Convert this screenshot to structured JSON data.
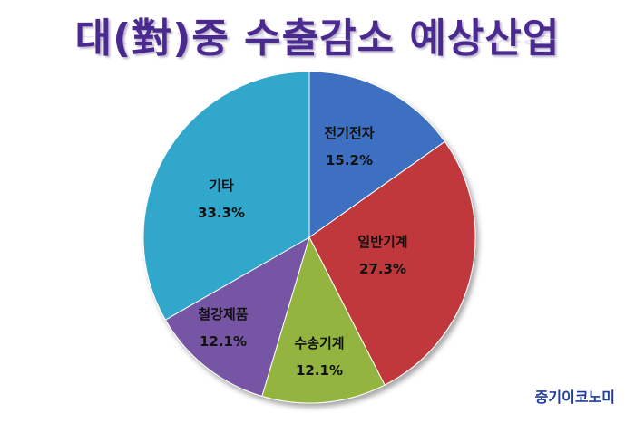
{
  "chart_data": {
    "type": "pie",
    "title": "대(對)중 수출감소 예상산업",
    "slices": [
      {
        "label": "전기전자",
        "value": 15.2,
        "value_text": "15.2%",
        "color": "#3d6fc1"
      },
      {
        "label": "일반기계",
        "value": 27.3,
        "value_text": "27.3%",
        "color": "#c0393b"
      },
      {
        "label": "수송기계",
        "value": 12.1,
        "value_text": "12.1%",
        "color": "#93b53f"
      },
      {
        "label": "철강제품",
        "value": 12.1,
        "value_text": "12.1%",
        "color": "#7755a5"
      },
      {
        "label": "기타",
        "value": 33.3,
        "value_text": "33.3%",
        "color": "#33a7cc"
      }
    ]
  },
  "source": "중기이코노미"
}
